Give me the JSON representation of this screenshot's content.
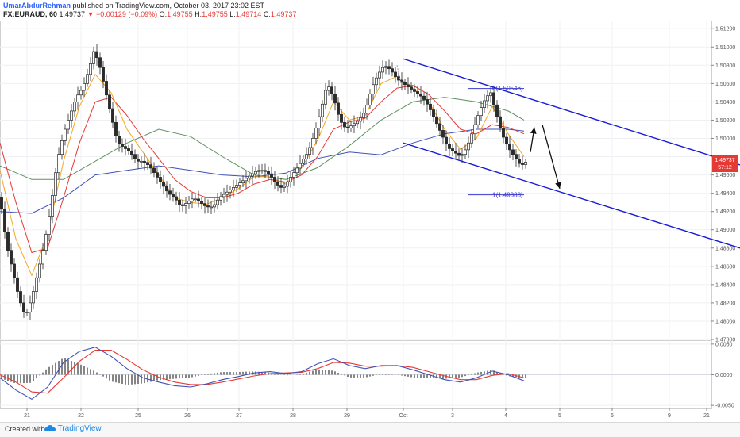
{
  "header": {
    "author": "UmarAbdurRehman",
    "published": "published on TradingView.com, October 03, 2017 23:02 EST",
    "symbol": "FX:EURAUD, 60",
    "last": "1.49737",
    "change": "−0.00129 (−0.09%)",
    "open_label": "O:",
    "open": "1.49755",
    "high_label": "H:",
    "high": "1.49755",
    "low_label": "L:",
    "low": "1.49714",
    "close_label": "C:",
    "close": "1.49737"
  },
  "price_badge": {
    "price": "1.49737",
    "countdown": "57:12"
  },
  "fib": {
    "level0_label": "0(1.50546)",
    "level1_label": "1(1.49383)"
  },
  "footer": {
    "created": "Created with",
    "brand": "TradingView"
  },
  "colors": {
    "up": "#2b2b2b",
    "down": "#2b2b2b",
    "channel": "#1a1ad6",
    "fib": "#3a3acf",
    "ma_orange": "#f5a623",
    "ma_red": "#e53935",
    "ma_green": "#5f8f5f",
    "ma_blue": "#3f51b5",
    "macd": "#3f51b5",
    "signal": "#e53935",
    "hist": "#333333",
    "badge": "#e53935"
  },
  "chart_data": {
    "type": "candlestick",
    "x_tick_labels": [
      "21",
      "22",
      "25",
      "26",
      "27",
      "28",
      "29",
      "Oct",
      "3",
      "4",
      "5",
      "6",
      "9",
      "21"
    ],
    "price_axis": {
      "ylim": [
        1.478,
        1.5128
      ],
      "ticks": [
        "1.47800",
        "1.48000",
        "1.48200",
        "1.48400",
        "1.48600",
        "1.48800",
        "1.49000",
        "1.49200",
        "1.49400",
        "1.49600",
        "1.49800",
        "1.50000",
        "1.50200",
        "1.50400",
        "1.50600",
        "1.50800",
        "1.51000",
        "1.51200"
      ]
    },
    "macd_axis": {
      "ylim": [
        -0.0055,
        0.0055
      ],
      "ticks": [
        "0.0050",
        "0.0000",
        "-0.0050"
      ]
    },
    "price_path": [
      [
        0,
        1.4935
      ],
      [
        8,
        1.4885
      ],
      [
        16,
        1.4855
      ],
      [
        24,
        1.4825
      ],
      [
        32,
        1.4805
      ],
      [
        40,
        1.4825
      ],
      [
        48,
        1.4855
      ],
      [
        56,
        1.4885
      ],
      [
        64,
        1.4925
      ],
      [
        72,
        1.4975
      ],
      [
        80,
        1.5005
      ],
      [
        88,
        1.5025
      ],
      [
        96,
        1.5045
      ],
      [
        104,
        1.5055
      ],
      [
        112,
        1.5075
      ],
      [
        118,
        1.5095
      ],
      [
        124,
        1.5085
      ],
      [
        132,
        1.5055
      ],
      [
        140,
        1.5025
      ],
      [
        148,
        1.4995
      ],
      [
        156,
        1.499
      ],
      [
        164,
        1.4985
      ],
      [
        172,
        1.4975
      ],
      [
        180,
        1.4975
      ],
      [
        188,
        1.497
      ],
      [
        196,
        1.496
      ],
      [
        204,
        1.495
      ],
      [
        212,
        1.494
      ],
      [
        220,
        1.4935
      ],
      [
        228,
        1.4925
      ],
      [
        236,
        1.493
      ],
      [
        244,
        1.4935
      ],
      [
        252,
        1.493
      ],
      [
        260,
        1.4925
      ],
      [
        268,
        1.4925
      ],
      [
        276,
        1.4935
      ],
      [
        284,
        1.494
      ],
      [
        292,
        1.4945
      ],
      [
        300,
        1.495
      ],
      [
        308,
        1.4955
      ],
      [
        316,
        1.496
      ],
      [
        324,
        1.4965
      ],
      [
        332,
        1.4965
      ],
      [
        340,
        1.496
      ],
      [
        348,
        1.495
      ],
      [
        356,
        1.4945
      ],
      [
        364,
        1.4955
      ],
      [
        372,
        1.4965
      ],
      [
        380,
        1.4975
      ],
      [
        388,
        1.4985
      ],
      [
        396,
        1.5005
      ],
      [
        404,
        1.503
      ],
      [
        412,
        1.506
      ],
      [
        420,
        1.5045
      ],
      [
        428,
        1.502
      ],
      [
        436,
        1.501
      ],
      [
        444,
        1.5015
      ],
      [
        452,
        1.502
      ],
      [
        460,
        1.503
      ],
      [
        468,
        1.5055
      ],
      [
        476,
        1.507
      ],
      [
        484,
        1.508
      ],
      [
        492,
        1.5075
      ],
      [
        500,
        1.5065
      ],
      [
        508,
        1.506
      ],
      [
        516,
        1.5055
      ],
      [
        524,
        1.505
      ],
      [
        532,
        1.5045
      ],
      [
        540,
        1.5035
      ],
      [
        548,
        1.502
      ],
      [
        556,
        1.5005
      ],
      [
        564,
        1.499
      ],
      [
        572,
        1.4985
      ],
      [
        580,
        1.498
      ],
      [
        588,
        1.499
      ],
      [
        596,
        1.501
      ],
      [
        604,
        1.503
      ],
      [
        612,
        1.5045
      ],
      [
        618,
        1.505
      ],
      [
        624,
        1.503
      ],
      [
        632,
        1.5005
      ],
      [
        640,
        1.499
      ],
      [
        648,
        1.498
      ],
      [
        656,
        1.497
      ],
      [
        662,
        1.4974
      ]
    ],
    "ma_fast_orange": [
      [
        0,
        1.4965
      ],
      [
        20,
        1.489
      ],
      [
        40,
        1.485
      ],
      [
        60,
        1.4895
      ],
      [
        80,
        1.4975
      ],
      [
        100,
        1.5035
      ],
      [
        120,
        1.507
      ],
      [
        140,
        1.505
      ],
      [
        160,
        1.501
      ],
      [
        180,
        1.4985
      ],
      [
        200,
        1.496
      ],
      [
        220,
        1.4935
      ],
      [
        240,
        1.493
      ],
      [
        260,
        1.4928
      ],
      [
        280,
        1.4935
      ],
      [
        300,
        1.4945
      ],
      [
        320,
        1.4958
      ],
      [
        340,
        1.4958
      ],
      [
        360,
        1.495
      ],
      [
        380,
        1.4968
      ],
      [
        400,
        1.4998
      ],
      [
        420,
        1.504
      ],
      [
        440,
        1.502
      ],
      [
        460,
        1.5025
      ],
      [
        480,
        1.506
      ],
      [
        500,
        1.5068
      ],
      [
        520,
        1.5055
      ],
      [
        540,
        1.504
      ],
      [
        560,
        1.501
      ],
      [
        580,
        1.4988
      ],
      [
        600,
        1.5
      ],
      [
        620,
        1.5035
      ],
      [
        640,
        1.5005
      ],
      [
        660,
        1.498
      ]
    ],
    "ma_mid_red": [
      [
        0,
        1.4995
      ],
      [
        20,
        1.493
      ],
      [
        40,
        1.4875
      ],
      [
        60,
        1.488
      ],
      [
        80,
        1.4935
      ],
      [
        100,
        1.4995
      ],
      [
        120,
        1.504
      ],
      [
        140,
        1.5045
      ],
      [
        160,
        1.5025
      ],
      [
        180,
        1.5
      ],
      [
        200,
        1.4978
      ],
      [
        220,
        1.4955
      ],
      [
        240,
        1.4942
      ],
      [
        260,
        1.4935
      ],
      [
        280,
        1.4935
      ],
      [
        300,
        1.494
      ],
      [
        320,
        1.495
      ],
      [
        340,
        1.4955
      ],
      [
        360,
        1.4952
      ],
      [
        380,
        1.496
      ],
      [
        400,
        1.498
      ],
      [
        420,
        1.501
      ],
      [
        440,
        1.5018
      ],
      [
        460,
        1.5022
      ],
      [
        480,
        1.504
      ],
      [
        500,
        1.5055
      ],
      [
        520,
        1.5058
      ],
      [
        540,
        1.5048
      ],
      [
        560,
        1.503
      ],
      [
        580,
        1.501
      ],
      [
        600,
        1.5005
      ],
      [
        620,
        1.5015
      ],
      [
        640,
        1.5012
      ],
      [
        660,
        1.5005
      ]
    ],
    "ma_slow_green": [
      [
        0,
        1.497
      ],
      [
        40,
        1.4955
      ],
      [
        80,
        1.4955
      ],
      [
        120,
        1.4975
      ],
      [
        160,
        1.4995
      ],
      [
        200,
        1.501
      ],
      [
        240,
        1.5002
      ],
      [
        280,
        1.498
      ],
      [
        320,
        1.496
      ],
      [
        360,
        1.4955
      ],
      [
        400,
        1.4968
      ],
      [
        440,
        1.4992
      ],
      [
        480,
        1.502
      ],
      [
        520,
        1.504
      ],
      [
        560,
        1.5045
      ],
      [
        600,
        1.504
      ],
      [
        640,
        1.503
      ],
      [
        660,
        1.502
      ]
    ],
    "ma_long_blue": [
      [
        0,
        1.492
      ],
      [
        40,
        1.4918
      ],
      [
        80,
        1.4935
      ],
      [
        120,
        1.496
      ],
      [
        160,
        1.4965
      ],
      [
        200,
        1.497
      ],
      [
        240,
        1.4965
      ],
      [
        280,
        1.496
      ],
      [
        320,
        1.4958
      ],
      [
        360,
        1.4962
      ],
      [
        400,
        1.4978
      ],
      [
        440,
        1.4985
      ],
      [
        480,
        1.4982
      ],
      [
        520,
        1.4995
      ],
      [
        560,
        1.5005
      ],
      [
        600,
        1.501
      ],
      [
        640,
        1.501
      ],
      [
        660,
        1.5008
      ]
    ],
    "macd_line": [
      [
        0,
        -0.0005
      ],
      [
        20,
        -0.0025
      ],
      [
        40,
        -0.004
      ],
      [
        60,
        -0.002
      ],
      [
        80,
        0.002
      ],
      [
        100,
        0.0038
      ],
      [
        120,
        0.0045
      ],
      [
        140,
        0.003
      ],
      [
        160,
        0.001
      ],
      [
        180,
        -0.0005
      ],
      [
        200,
        -0.0012
      ],
      [
        220,
        -0.0018
      ],
      [
        240,
        -0.002
      ],
      [
        260,
        -0.0015
      ],
      [
        280,
        -0.0008
      ],
      [
        300,
        -0.0003
      ],
      [
        320,
        0.0003
      ],
      [
        340,
        0.0005
      ],
      [
        360,
        0.0002
      ],
      [
        380,
        0.0005
      ],
      [
        400,
        0.0018
      ],
      [
        420,
        0.0026
      ],
      [
        440,
        0.0015
      ],
      [
        460,
        0.001
      ],
      [
        480,
        0.0015
      ],
      [
        500,
        0.0015
      ],
      [
        520,
        0.0008
      ],
      [
        540,
        0.0
      ],
      [
        560,
        -0.0008
      ],
      [
        580,
        -0.0012
      ],
      [
        600,
        -0.0005
      ],
      [
        620,
        0.0006
      ],
      [
        640,
        0.0
      ],
      [
        660,
        -0.001
      ]
    ],
    "signal_line": [
      [
        0,
        0.0
      ],
      [
        20,
        -0.0012
      ],
      [
        40,
        -0.0028
      ],
      [
        60,
        -0.003
      ],
      [
        80,
        -0.0005
      ],
      [
        100,
        0.0022
      ],
      [
        120,
        0.004
      ],
      [
        140,
        0.004
      ],
      [
        160,
        0.0025
      ],
      [
        180,
        0.0008
      ],
      [
        200,
        -0.0004
      ],
      [
        220,
        -0.0012
      ],
      [
        240,
        -0.0016
      ],
      [
        260,
        -0.0016
      ],
      [
        280,
        -0.0012
      ],
      [
        300,
        -0.0007
      ],
      [
        320,
        -0.0002
      ],
      [
        340,
        0.0002
      ],
      [
        360,
        0.0003
      ],
      [
        380,
        0.0004
      ],
      [
        400,
        0.001
      ],
      [
        420,
        0.002
      ],
      [
        440,
        0.0019
      ],
      [
        460,
        0.0014
      ],
      [
        480,
        0.0014
      ],
      [
        500,
        0.0015
      ],
      [
        520,
        0.0012
      ],
      [
        540,
        0.0005
      ],
      [
        560,
        -0.0002
      ],
      [
        580,
        -0.0008
      ],
      [
        600,
        -0.0008
      ],
      [
        620,
        -0.0001
      ],
      [
        640,
        0.0002
      ],
      [
        660,
        -0.0005
      ]
    ],
    "channel": {
      "upper": [
        [
          508,
          1.5087
        ],
        [
          932,
          1.4971
        ]
      ],
      "lower": [
        [
          508,
          1.4995
        ],
        [
          932,
          1.488
        ]
      ]
    },
    "fib": {
      "level0": 1.50546,
      "level1": 1.49383,
      "x_start": 590,
      "x_end": 660
    },
    "arrows": [
      {
        "from": [
          668,
          1.4985
        ],
        "to": [
          673,
          1.5012
        ]
      },
      {
        "from": [
          683,
          1.5015
        ],
        "to": [
          705,
          1.4945
        ]
      }
    ]
  }
}
